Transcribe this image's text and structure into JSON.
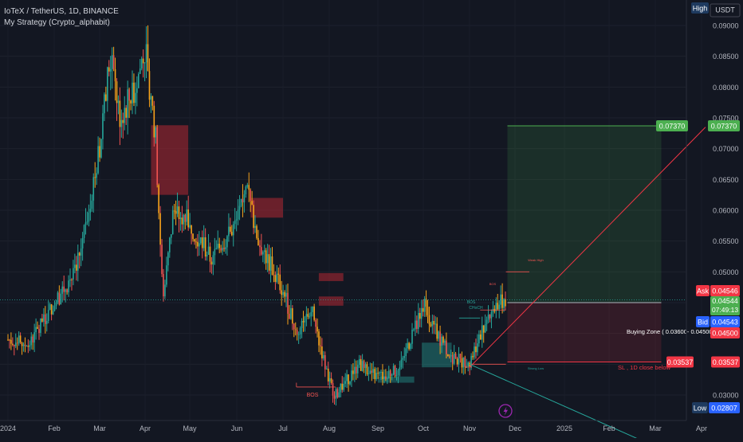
{
  "header": {
    "symbol_line": "IoTeX / TetherUS, 1D, BINANCE",
    "strategy_line": "My Strategy (Crypto_alphabit)"
  },
  "axis": {
    "currency_label": "USDT",
    "high_label": "High",
    "low_label": "Low",
    "low_value": "0.02807",
    "y_ticks": [
      "0.09000",
      "0.08500",
      "0.08000",
      "0.07500",
      "0.07000",
      "0.06500",
      "0.06000",
      "0.05500",
      "0.05000",
      "0.04500",
      "0.04000",
      "0.03500",
      "0.03000"
    ],
    "x_ticks": [
      "2024",
      "Feb",
      "Mar",
      "Apr",
      "May",
      "Jun",
      "Jul",
      "Aug",
      "Sep",
      "Oct",
      "Nov",
      "Dec",
      "2025",
      "Feb",
      "Mar",
      "Apr"
    ]
  },
  "price_tags": {
    "target": "0.07370",
    "ask_label": "Ask",
    "ask_value": "0.04546",
    "last_value": "0.04544",
    "countdown": "07:49:13",
    "bid_label": "Bid",
    "bid_value": "0.04543",
    "entry_value": "0.04500",
    "stop_value": "0.03537"
  },
  "annotations": {
    "buying_zone": "Buying Zone ( 0.03600- 0.04500)",
    "stop_loss": "SL , 1D close below",
    "bos_1": "BOS",
    "bos_2": "BOS",
    "bos_3": "BOS",
    "choch": "CHoCH",
    "bos_small": "BOS",
    "weak_high": "Weak High",
    "strong_low": "Strong Low"
  },
  "colors": {
    "background": "#131722",
    "up": "#26a69a",
    "down": "#ef5350",
    "wick_orange": "#f7a21b",
    "target_green": "#4caf50",
    "bid_blue": "#2962ff",
    "stop_red": "#f23645"
  },
  "chart_data": {
    "type": "candlestick",
    "x": [
      "2024-01-01",
      "2024-01-15",
      "2024-02-01",
      "2024-02-15",
      "2024-03-01",
      "2024-03-08",
      "2024-03-15",
      "2024-03-25",
      "2024-04-01",
      "2024-04-08",
      "2024-04-13",
      "2024-04-20",
      "2024-05-01",
      "2024-05-15",
      "2024-06-01",
      "2024-06-08",
      "2024-06-15",
      "2024-07-01",
      "2024-07-10",
      "2024-07-20",
      "2024-08-01",
      "2024-08-05",
      "2024-08-20",
      "2024-09-01",
      "2024-09-15",
      "2024-10-01",
      "2024-10-10",
      "2024-10-20",
      "2024-11-01",
      "2024-11-05",
      "2024-11-15",
      "2024-11-25"
    ],
    "close": [
      0.039,
      0.038,
      0.045,
      0.05,
      0.07,
      0.085,
      0.075,
      0.08,
      0.086,
      0.072,
      0.045,
      0.06,
      0.058,
      0.052,
      0.058,
      0.063,
      0.055,
      0.047,
      0.04,
      0.044,
      0.032,
      0.03,
      0.035,
      0.033,
      0.034,
      0.045,
      0.04,
      0.036,
      0.035,
      0.038,
      0.044,
      0.04544
    ],
    "ylim": [
      0.0275,
      0.092
    ],
    "zones": [
      {
        "type": "supply",
        "from": "2024-04-05",
        "to": "2024-04-30",
        "low": 0.0625,
        "high": 0.0738
      },
      {
        "type": "supply",
        "from": "2024-06-10",
        "to": "2024-07-01",
        "low": 0.0588,
        "high": 0.062
      },
      {
        "type": "supply",
        "from": "2024-07-25",
        "to": "2024-08-10",
        "low": 0.0445,
        "high": 0.046
      },
      {
        "type": "supply",
        "from": "2024-07-25",
        "to": "2024-08-10",
        "low": 0.0485,
        "high": 0.0498
      },
      {
        "type": "demand",
        "from": "2024-09-30",
        "to": "2024-10-20",
        "low": 0.0345,
        "high": 0.0385
      },
      {
        "type": "demand",
        "from": "2024-09-01",
        "to": "2024-09-25",
        "low": 0.032,
        "high": 0.033
      }
    ],
    "position": {
      "entry": 0.045,
      "stop": 0.03537,
      "target": 0.0737,
      "from": "2024-11-26",
      "to": "2025-03-05"
    },
    "levels": {
      "ask": 0.04546,
      "bid": 0.04543,
      "last": 0.04544,
      "low": 0.02807
    }
  }
}
